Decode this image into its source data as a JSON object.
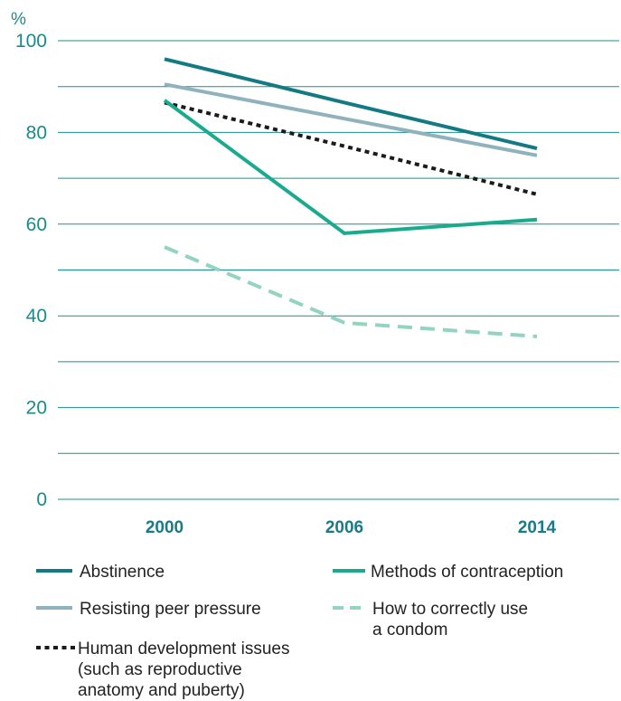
{
  "chart_data": {
    "type": "line",
    "ylabel": "%",
    "ylim": [
      0,
      100
    ],
    "yticks": [
      0,
      20,
      40,
      60,
      80,
      100
    ],
    "grid": true,
    "legend_position": "bottom",
    "categories": [
      "2000",
      "2006",
      "2014"
    ],
    "series": [
      {
        "name": "Abstinence",
        "values": [
          96,
          86.5,
          76.5
        ],
        "color": "#137a84",
        "style": "solid"
      },
      {
        "name": "Resisting peer pressure",
        "values": [
          90.5,
          83,
          75
        ],
        "color": "#8fb2bd",
        "style": "solid"
      },
      {
        "name": "Human development issues\n(such as reproductive\nanatomy and puberty)",
        "values": [
          86.5,
          77,
          66.5
        ],
        "color": "#1b1b1b",
        "style": "dotted"
      },
      {
        "name": "Methods of contraception",
        "values": [
          87,
          58,
          61
        ],
        "color": "#1aab8e",
        "style": "solid"
      },
      {
        "name": "How to correctly use\na condom",
        "values": [
          55,
          38.5,
          35.5
        ],
        "color": "#93d3c2",
        "style": "dashed"
      }
    ]
  }
}
